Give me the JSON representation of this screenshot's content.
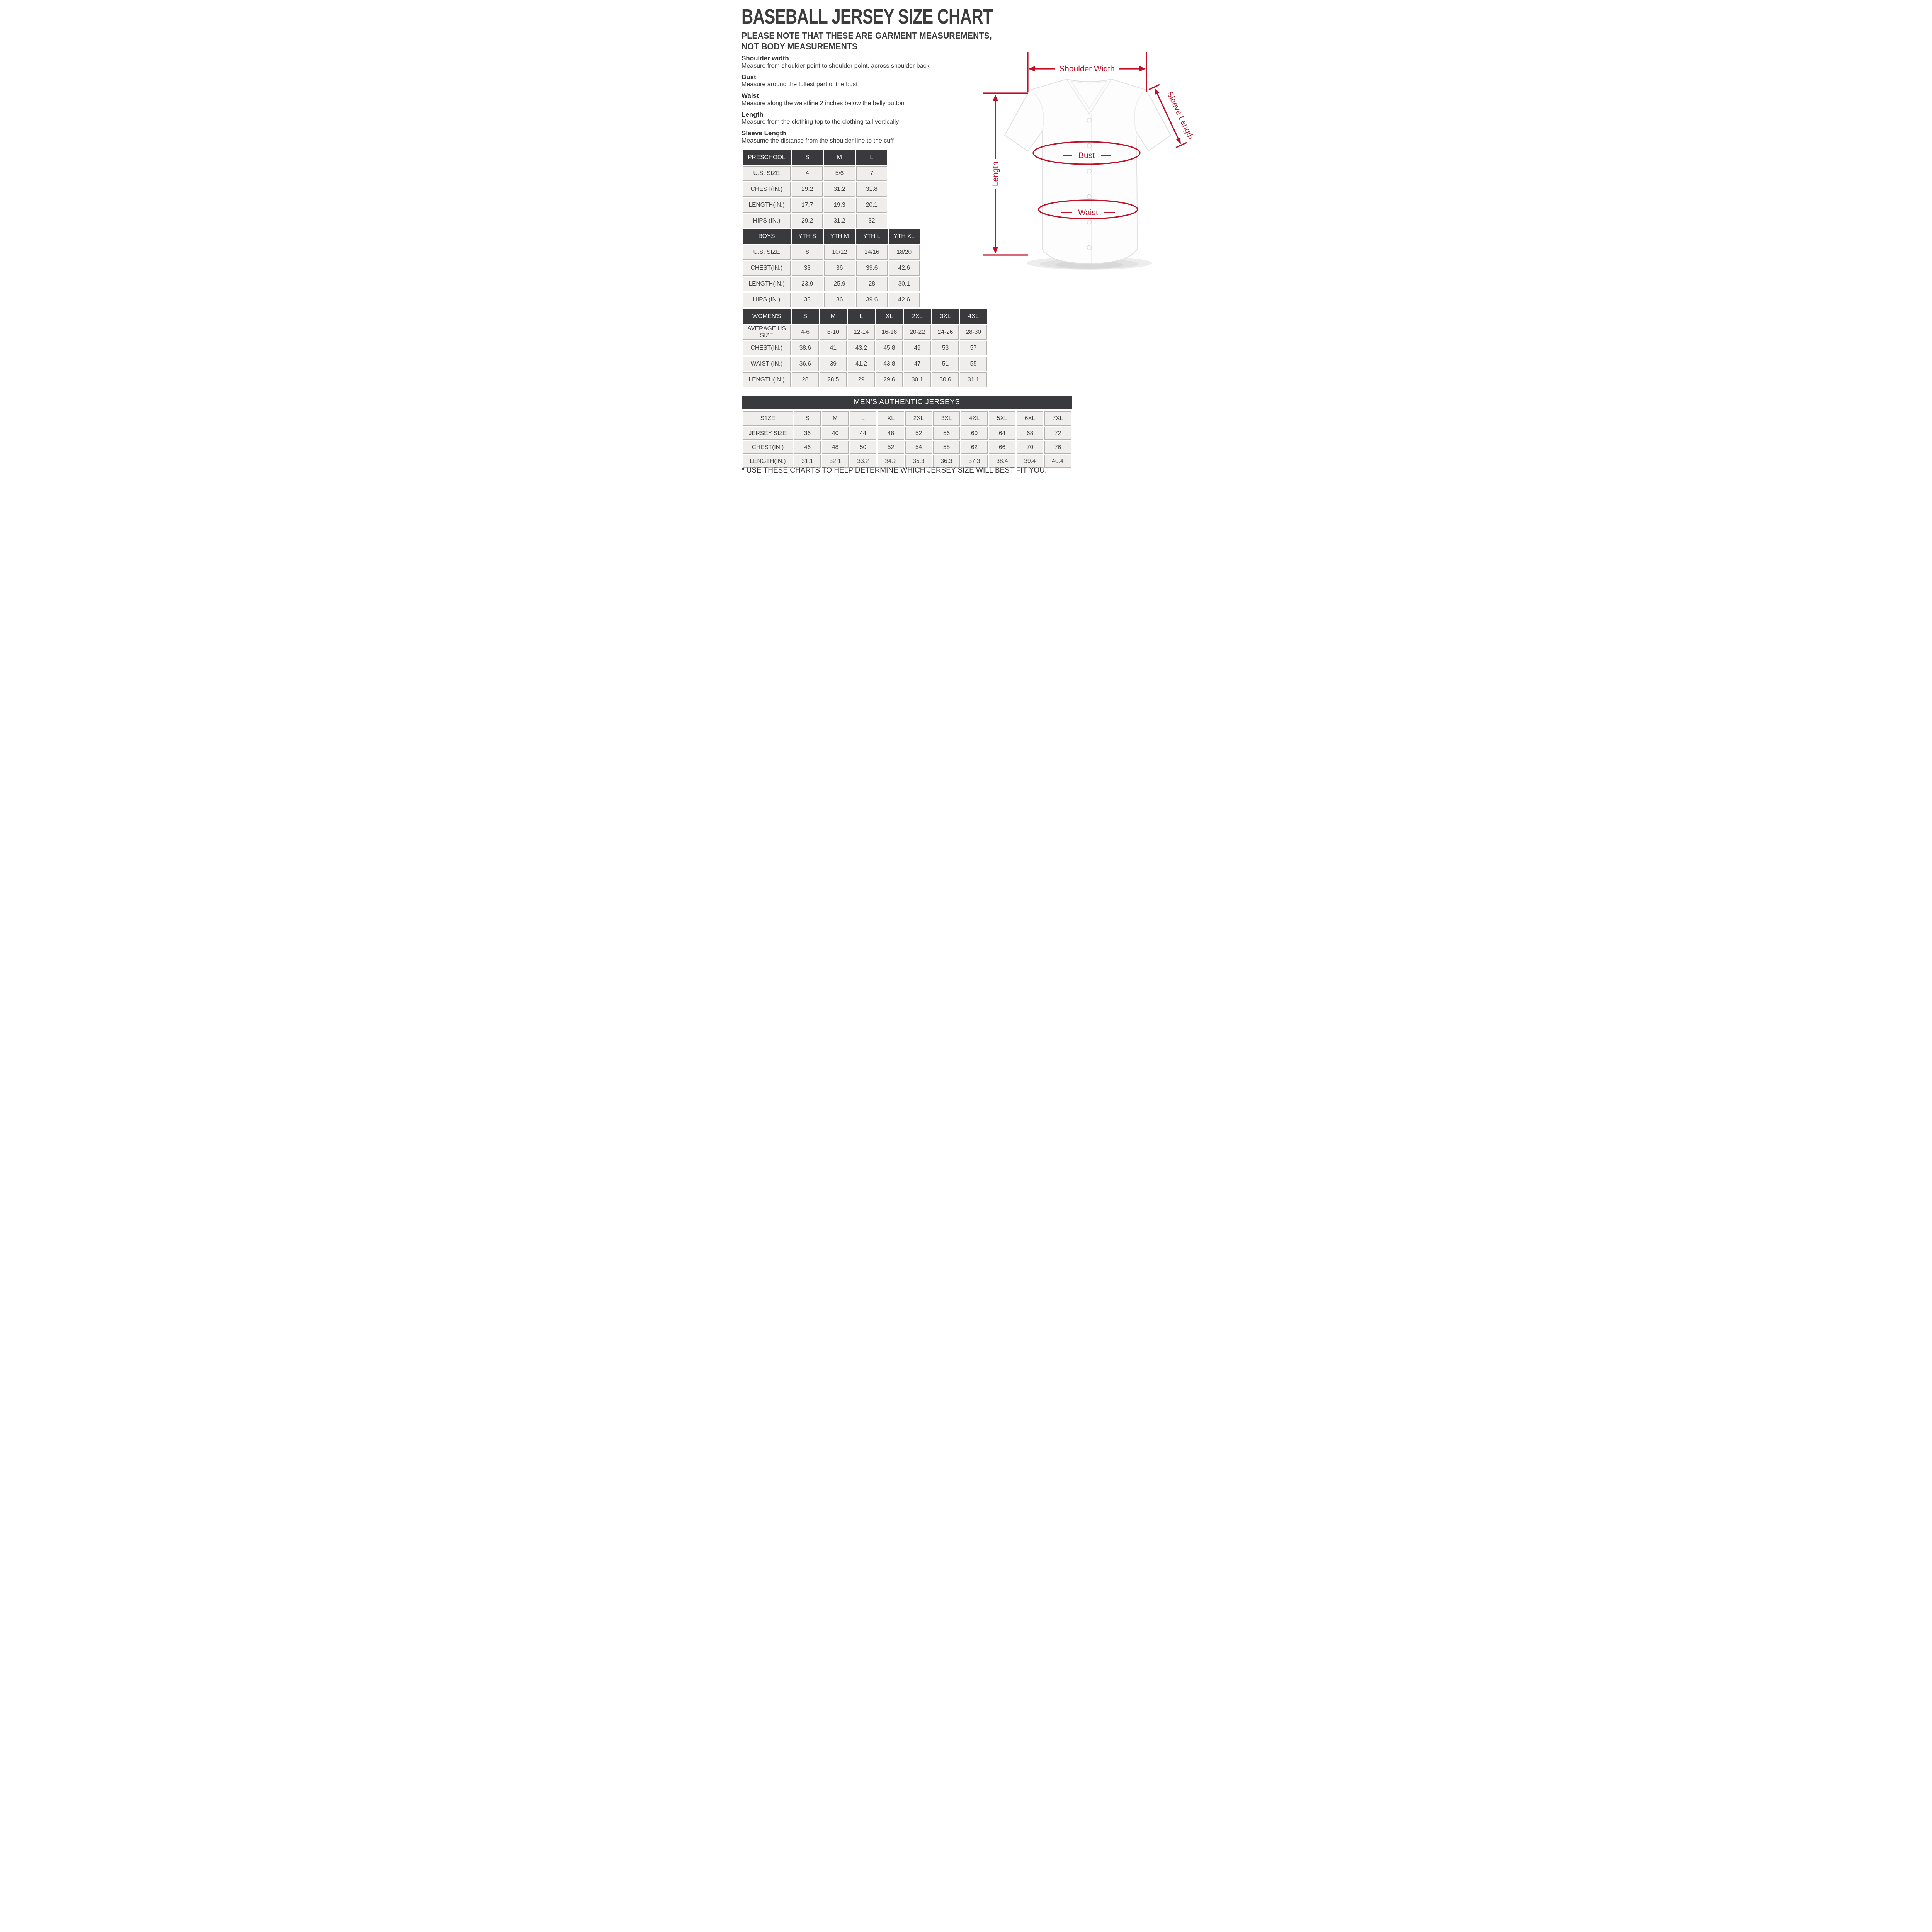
{
  "page": {
    "title": "BASEBALL JERSEY SIZE CHART",
    "subtitle_line1": "PLEASE NOTE THAT THESE ARE GARMENT MEASUREMENTS,",
    "subtitle_line2": "NOT BODY MEASUREMENTS",
    "footnote": "* USE THESE CHARTS TO HELP DETERMINE WHICH JERSEY SIZE WILL BEST FIT YOU."
  },
  "definitions": [
    {
      "term": "Shoulder width",
      "desc": "Measure from shoulder point to shoulder point, across shoulder back"
    },
    {
      "term": "Bust",
      "desc": "Measure around the fullest part of the bust"
    },
    {
      "term": "Waist",
      "desc": "Measure along the waistline 2 inches below the belly button"
    },
    {
      "term": "Length",
      "desc": "Measure from the clothing top to the clothing tail vertically"
    },
    {
      "term": "Sleeve Length",
      "desc": "Measume the distance from the shoulder line to the cuff"
    }
  ],
  "diagram": {
    "annotation_color": "#c01027",
    "labels": {
      "shoulder_width": "Shoulder Width",
      "sleeve_length": "Sleeve Length",
      "bust": "Bust",
      "waist": "Waist",
      "length": "Length"
    }
  },
  "tables": {
    "preschool": {
      "header": [
        "PRESCHOOL",
        "S",
        "M",
        "L"
      ],
      "rows": [
        [
          "U.S,  SIZE",
          "4",
          "5/6",
          "7"
        ],
        [
          "CHEST(IN.)",
          "29.2",
          "31.2",
          "31.8"
        ],
        [
          "LENGTH(IN.)",
          "17.7",
          "19.3",
          "20.1"
        ],
        [
          "HIPS (IN.)",
          "29.2",
          "31.2",
          "32"
        ]
      ]
    },
    "boys": {
      "header": [
        "BOYS",
        "YTH S",
        "YTH M",
        "YTH L",
        "YTH XL"
      ],
      "rows": [
        [
          "U.S,  SIZE",
          "8",
          "10/12",
          "14/16",
          "18/20"
        ],
        [
          "CHEST(IN.)",
          "33",
          "36",
          "39.6",
          "42.6"
        ],
        [
          "LENGTH(IN.)",
          "23.9",
          "25.9",
          "28",
          "30.1"
        ],
        [
          "HIPS (IN.)",
          "33",
          "36",
          "39.6",
          "42.6"
        ]
      ]
    },
    "women": {
      "header": [
        "WOMEN'S",
        "S",
        "M",
        "L",
        "XL",
        "2XL",
        "3XL",
        "4XL"
      ],
      "rows": [
        [
          "AVERAGE US SIZE",
          "4-6",
          "8-10",
          "12-14",
          "16-18",
          "20-22",
          "24-26",
          "28-30"
        ],
        [
          "CHEST(IN.)",
          "38.6",
          "41",
          "43.2",
          "45.8",
          "49",
          "53",
          "57"
        ],
        [
          "WAIST (IN.)",
          "36.6",
          "39",
          "41.2",
          "43.8",
          "47",
          "51",
          "55"
        ],
        [
          "LENGTH(IN.)",
          "28",
          "28.5",
          "29",
          "29.6",
          "30.1",
          "30.6",
          "31.1"
        ]
      ]
    },
    "men": {
      "title": "MEN'S AUTHENTIC JERSEYS",
      "header": [
        "S1ZE",
        "S",
        "M",
        "L",
        "XL",
        "2XL",
        "3XL",
        "4XL",
        "5XL",
        "6XL",
        "7XL"
      ],
      "rows": [
        [
          "JERSEY SIZE",
          "36",
          "40",
          "44",
          "48",
          "52",
          "56",
          "60",
          "64",
          "68",
          "72"
        ],
        [
          "CHEST(IN.)",
          "46",
          "48",
          "50",
          "52",
          "54",
          "58",
          "62",
          "66",
          "70",
          "76"
        ],
        [
          "LENGTH(IN.)",
          "31.1",
          "32.1",
          "33.2",
          "34.2",
          "35.3",
          "36.3",
          "37.3",
          "38.4",
          "39.4",
          "40.4"
        ]
      ]
    }
  }
}
